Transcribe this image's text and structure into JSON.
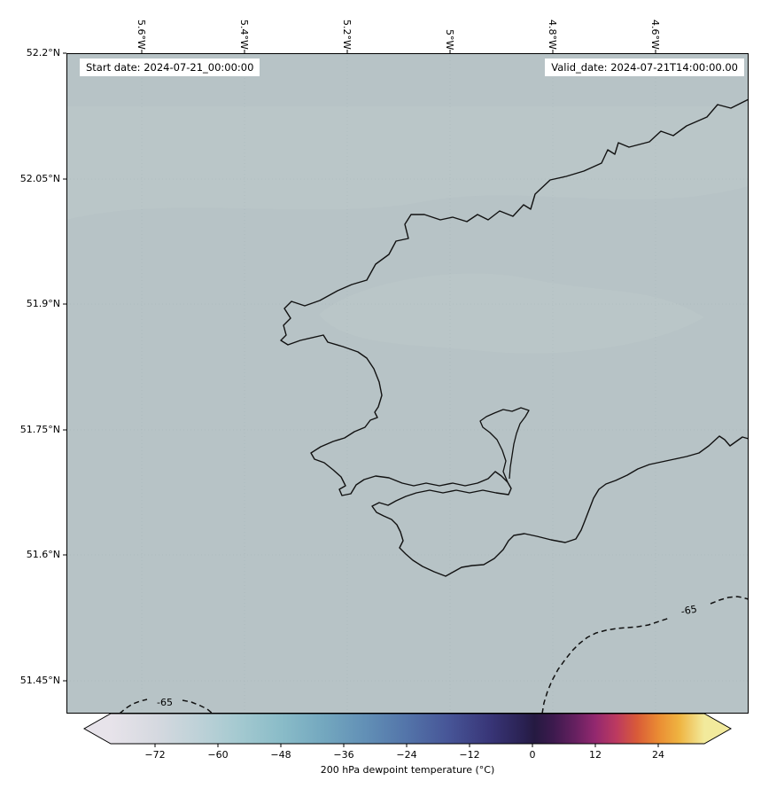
{
  "header": {
    "start_date": "Start date: 2024-07-21_00:00:00",
    "valid_date": "Valid_date: 2024-07-21T14:00:00.00"
  },
  "axes": {
    "x_ticks": [
      "5.6°W",
      "5.4°W",
      "5.2°W",
      "5°W",
      "4.8°W",
      "4.6°W"
    ],
    "y_ticks": [
      "52.2°N",
      "52.05°N",
      "51.9°N",
      "51.75°N",
      "51.6°N",
      "51.45°N"
    ]
  },
  "map": {
    "background_color": "#b7c3c6",
    "lighter_patch_color": "#bec9ca",
    "coastline_color": "#111111"
  },
  "contours": {
    "bottom_left_label": "-65",
    "bottom_right_label": "-65"
  },
  "colorbar": {
    "label": "200 hPa dewpoint temperature (°C)",
    "ticks": [
      "−72",
      "−60",
      "−48",
      "−36",
      "−24",
      "−12",
      "0",
      "12",
      "24"
    ],
    "gradient": [
      {
        "o": 0.0,
        "c": "#e7e3ea"
      },
      {
        "o": 0.075,
        "c": "#d6d9e0"
      },
      {
        "o": 0.145,
        "c": "#bfd2d8"
      },
      {
        "o": 0.216,
        "c": "#a4c9d0"
      },
      {
        "o": 0.287,
        "c": "#8abcc8"
      },
      {
        "o": 0.357,
        "c": "#74a8bf"
      },
      {
        "o": 0.428,
        "c": "#6290b6"
      },
      {
        "o": 0.499,
        "c": "#5374a9"
      },
      {
        "o": 0.569,
        "c": "#475597"
      },
      {
        "o": 0.64,
        "c": "#383577"
      },
      {
        "o": 0.695,
        "c": "#2a2152"
      },
      {
        "o": 0.714,
        "c": "#251a41"
      },
      {
        "o": 0.746,
        "c": "#3d1a4e"
      },
      {
        "o": 0.781,
        "c": "#64205f"
      },
      {
        "o": 0.816,
        "c": "#93286f"
      },
      {
        "o": 0.852,
        "c": "#bc3a60"
      },
      {
        "o": 0.887,
        "c": "#d95b38"
      },
      {
        "o": 0.922,
        "c": "#ea8b33"
      },
      {
        "o": 0.958,
        "c": "#efb441"
      },
      {
        "o": 1.0,
        "c": "#f2ea9c"
      }
    ]
  },
  "chart_data": {
    "type": "heatmap",
    "title": "200 hPa dewpoint temperature (°C)",
    "annotations": [
      "Start date: 2024-07-21_00:00:00",
      "Valid_date: 2024-07-21T14:00:00.00"
    ],
    "x_tick_labels": [
      "5.6°W",
      "5.4°W",
      "5.2°W",
      "5°W",
      "4.8°W",
      "4.6°W"
    ],
    "y_tick_labels": [
      "52.2°N",
      "52.05°N",
      "51.9°N",
      "51.75°N",
      "51.6°N",
      "51.45°N"
    ],
    "x_range_deg_west": [
      5.75,
      4.42
    ],
    "y_range_deg_north": [
      51.41,
      52.2
    ],
    "colorbar": {
      "label": "200 hPa dewpoint temperature (°C)",
      "tick_values": [
        -72,
        -60,
        -48,
        -36,
        -24,
        -12,
        0,
        12,
        24
      ],
      "approx_range": [
        -80,
        32
      ],
      "extend": "both"
    },
    "contour_lines": [
      {
        "value": -65,
        "style": "dashed",
        "locations": [
          "bottom-left corner",
          "bottom-right corner"
        ]
      }
    ],
    "field_summary": "nearly uniform filled field of about -60 to -65 °C across the whole domain; values beyond -65 °C outside the dashed contours in the bottom corners",
    "overlays": [
      "coastline (southwest Wales / Pembrokeshire)"
    ],
    "grid": "faint dotted graticule at each tick",
    "legend_position": "horizontal colorbar below map"
  }
}
